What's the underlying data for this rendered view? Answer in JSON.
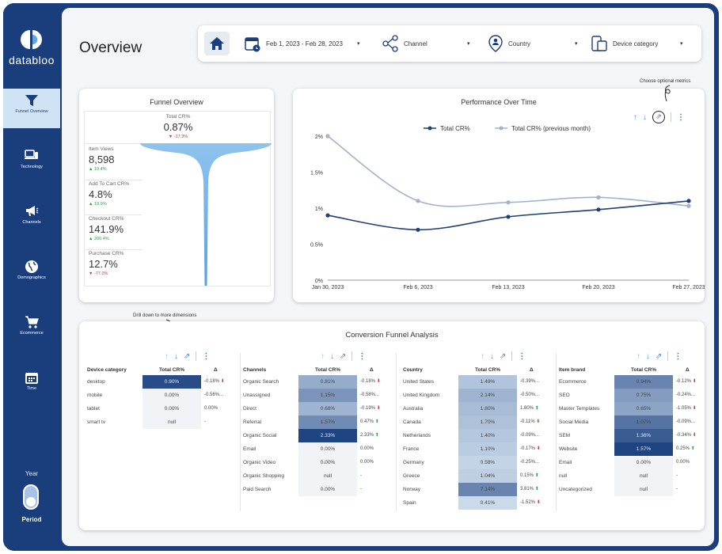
{
  "brand": {
    "name": "databloo"
  },
  "nav": [
    {
      "label": "Funnel Overview",
      "icon": "funnel-icon",
      "active": true
    },
    {
      "label": "Technology",
      "icon": "devices-icon",
      "active": false
    },
    {
      "label": "Channels",
      "icon": "megaphone-icon",
      "active": false
    },
    {
      "label": "Demographics",
      "icon": "globe-icon",
      "active": false
    },
    {
      "label": "Ecommerce",
      "icon": "cart-icon",
      "active": false
    },
    {
      "label": "Time",
      "icon": "calendar-icon",
      "active": false
    }
  ],
  "period_control": {
    "top_label": "Year",
    "bottom_label": "Period"
  },
  "page": {
    "title": "Overview"
  },
  "filters": {
    "date": "Feb 1, 2023 - Feb 28, 2023",
    "channel": "Channel",
    "country": "Country",
    "device": "Device category"
  },
  "funnel": {
    "title": "Funnel Overview",
    "total": {
      "name": "Total CR%",
      "value": "0.87%",
      "delta": "-17.3%",
      "dir": "down"
    },
    "steps": [
      {
        "name": "Item Views",
        "value": "8,598",
        "delta": "19.4%",
        "dir": "up"
      },
      {
        "name": "Add To Cart CR%",
        "value": "4.8%",
        "delta": "19.9%",
        "dir": "up"
      },
      {
        "name": "Checkout CR%",
        "value": "141.9%",
        "delta": "200.4%",
        "dir": "up"
      },
      {
        "name": "Purchase CR%",
        "value": "12.7%",
        "delta": "-77.0%",
        "dir": "down"
      }
    ]
  },
  "annotations": {
    "optional_metrics": "Choose optional metrics",
    "drill_down": "Drill down to more dimensions"
  },
  "chart_data": {
    "type": "line",
    "title": "Performance Over Time",
    "x": [
      "Jan 30, 2023",
      "Feb 6, 2023",
      "Feb 13, 2023",
      "Feb 20, 2023",
      "Feb 27, 2023"
    ],
    "series": [
      {
        "name": "Total CR%",
        "values": [
          0.9,
          0.7,
          0.88,
          0.98,
          1.1
        ],
        "color": "#1f3f75"
      },
      {
        "name": "Total CR% (previous month)",
        "values": [
          2.0,
          1.1,
          1.08,
          1.15,
          1.03
        ],
        "color": "#9fb3cc"
      }
    ],
    "yticks": [
      "0%",
      "0.5%",
      "1%",
      "1.5%",
      "2%"
    ],
    "ylim": [
      0,
      2
    ],
    "legend": "top-center",
    "grid": false
  },
  "cfa": {
    "title": "Conversion Funnel Analysis",
    "col_cr": "Total CR%",
    "col_delta": "Δ",
    "tables": [
      {
        "dim": "Device category",
        "rows": [
          {
            "name": "desktop",
            "cr": "0.90%",
            "delta": "-0.18%",
            "dir": "down",
            "shade": 0.95
          },
          {
            "name": "mobile",
            "cr": "0.00%",
            "delta": "-0.56%...",
            "dir": "",
            "shade": 0
          },
          {
            "name": "tablet",
            "cr": "0.00%",
            "delta": "0.00%",
            "dir": "",
            "shade": 0
          },
          {
            "name": "smart tv",
            "cr": "null",
            "delta": "-",
            "dir": "",
            "shade": 0
          }
        ]
      },
      {
        "dim": "Channels",
        "rows": [
          {
            "name": "Organic Search",
            "cr": "0.81%",
            "delta": "-0.18%",
            "dir": "down",
            "shade": 0.35
          },
          {
            "name": "Unassigned",
            "cr": "1.15%",
            "delta": "-0.58%...",
            "dir": "",
            "shade": 0.5
          },
          {
            "name": "Direct",
            "cr": "0.68%",
            "delta": "-0.19%",
            "dir": "down",
            "shade": 0.3
          },
          {
            "name": "Referral",
            "cr": "1.57%",
            "delta": "0.47%",
            "dir": "up",
            "shade": 0.55
          },
          {
            "name": "Organic Social",
            "cr": "2.33%",
            "delta": "2.33%",
            "dir": "up",
            "shade": 1
          },
          {
            "name": "Email",
            "cr": "0.00%",
            "delta": "0.00%",
            "dir": "",
            "shade": 0
          },
          {
            "name": "Organic Video",
            "cr": "0.00%",
            "delta": "0.00%",
            "dir": "",
            "shade": 0
          },
          {
            "name": "Organic Shopping",
            "cr": "null",
            "delta": "-",
            "dir": "",
            "shade": 0
          },
          {
            "name": "Paid Search",
            "cr": "0.00%",
            "delta": "-",
            "dir": "",
            "shade": 0
          }
        ]
      },
      {
        "dim": "Country",
        "rows": [
          {
            "name": "United States",
            "cr": "1.49%",
            "delta": "-0.39%...",
            "dir": "",
            "shade": 0.2
          },
          {
            "name": "United Kingdom",
            "cr": "2.14%",
            "delta": "-0.50%...",
            "dir": "",
            "shade": 0.3
          },
          {
            "name": "Australia",
            "cr": "1.80%",
            "delta": "1.80%",
            "dir": "up",
            "shade": 0.25
          },
          {
            "name": "Canada",
            "cr": "1.70%",
            "delta": "-0.11%",
            "dir": "down",
            "shade": 0.22
          },
          {
            "name": "Netherlands",
            "cr": "1.40%",
            "delta": "-0.09%...",
            "dir": "",
            "shade": 0.18
          },
          {
            "name": "France",
            "cr": "1.10%",
            "delta": "-0.17%",
            "dir": "down",
            "shade": 0.15
          },
          {
            "name": "Germany",
            "cr": "0.58%",
            "delta": "-0.25%...",
            "dir": "",
            "shade": 0.1
          },
          {
            "name": "Greece",
            "cr": "1.04%",
            "delta": "0.15%",
            "dir": "up",
            "shade": 0.13
          },
          {
            "name": "Norway",
            "cr": "7.14%",
            "delta": "3.81%",
            "dir": "up",
            "shade": 0.6
          },
          {
            "name": "Spain",
            "cr": "0.41%",
            "delta": "-1.52%",
            "dir": "down",
            "shade": 0.06
          }
        ]
      },
      {
        "dim": "Item brand",
        "rows": [
          {
            "name": "Ecommerce",
            "cr": "0.94%",
            "delta": "-0.12%",
            "dir": "down",
            "shade": 0.6
          },
          {
            "name": "SEO",
            "cr": "0.75%",
            "delta": "-0.24%...",
            "dir": "",
            "shade": 0.45
          },
          {
            "name": "Master Templates",
            "cr": "0.65%",
            "delta": "-1.05%",
            "dir": "down",
            "shade": 0.4
          },
          {
            "name": "Social Media",
            "cr": "1.07%",
            "delta": "-0.09%...",
            "dir": "",
            "shade": 0.7
          },
          {
            "name": "SEM",
            "cr": "1.36%",
            "delta": "-0.34%",
            "dir": "down",
            "shade": 0.85
          },
          {
            "name": "Website",
            "cr": "1.57%",
            "delta": "0.25%",
            "dir": "up",
            "shade": 1
          },
          {
            "name": "Email",
            "cr": "0.00%",
            "delta": "0.00%",
            "dir": "",
            "shade": 0
          },
          {
            "name": "null",
            "cr": "null",
            "delta": "-",
            "dir": "",
            "shade": 0
          },
          {
            "name": "Uncategorized",
            "cr": "null",
            "delta": "-",
            "dir": "",
            "shade": 0
          }
        ]
      }
    ]
  }
}
